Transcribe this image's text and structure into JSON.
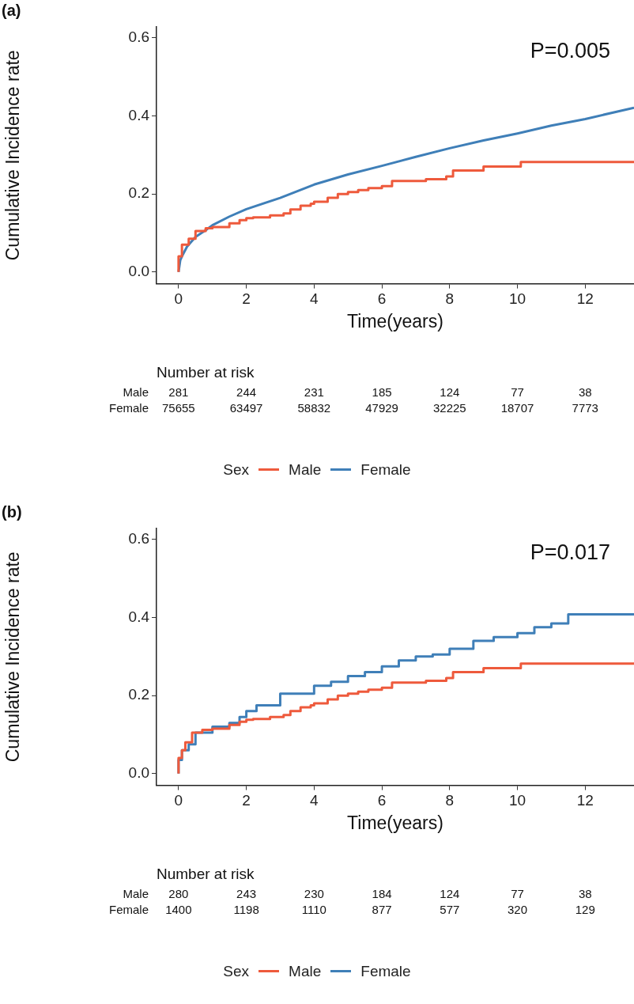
{
  "chart_data": [
    {
      "type": "step",
      "xlabel": "Time(years)",
      "ylabel": "Cumulative Incidence rate",
      "legend_title": "Sex",
      "legend": "bottom",
      "grid": false,
      "marker": "none",
      "line_style": "solid",
      "xlim": [
        -0.65,
        13.44
      ],
      "xticks": [
        0,
        2,
        4,
        6,
        8,
        10,
        12
      ],
      "ylim": [
        -0.03,
        0.628
      ],
      "yticks": [
        {
          "value": 0,
          "label": "0.0"
        },
        {
          "value": 0.2,
          "label": "0.2"
        },
        {
          "value": 0.4,
          "label": "0.4"
        },
        {
          "value": 0.6,
          "label": "0.6"
        }
      ],
      "annotations": [
        "(a)",
        "P=0.005",
        "Number at risk",
        "Male",
        "281",
        "244",
        "231",
        "185",
        "124",
        "77",
        "38",
        "Female",
        "75655",
        "63497",
        "58832",
        "47929",
        "32225",
        "18707",
        "7773"
      ],
      "series": [
        {
          "name": "Male",
          "color": "#ee5a3c",
          "type": "step",
          "x": [
            0,
            0.1,
            0.3,
            0.5,
            0.8,
            1.0,
            1.5,
            1.8,
            2.0,
            2.2,
            2.7,
            3.1,
            3.3,
            3.6,
            3.9,
            4.0,
            4.4,
            4.7,
            5.0,
            5.3,
            5.6,
            6.0,
            6.3,
            7.3,
            7.9,
            8.1,
            9.0,
            10.1,
            11.0,
            13.44
          ],
          "values": [
            0,
            0.04,
            0.07,
            0.085,
            0.105,
            0.112,
            0.115,
            0.125,
            0.133,
            0.138,
            0.14,
            0.145,
            0.15,
            0.16,
            0.17,
            0.175,
            0.18,
            0.19,
            0.2,
            0.205,
            0.21,
            0.215,
            0.22,
            0.233,
            0.238,
            0.245,
            0.26,
            0.27,
            0.282,
            0.282
          ]
        },
        {
          "name": "Female",
          "color": "#3f7fb8",
          "type": "line",
          "x": [
            0,
            0.05,
            0.1,
            0.25,
            0.5,
            0.8,
            1,
            1.5,
            2,
            3,
            4,
            5,
            6,
            7,
            8,
            9,
            10,
            11,
            12,
            13.44
          ],
          "values": [
            0,
            0.03,
            0.04,
            0.065,
            0.09,
            0.107,
            0.12,
            0.142,
            0.161,
            0.19,
            0.224,
            0.25,
            0.272,
            0.295,
            0.317,
            0.337,
            0.355,
            0.375,
            0.392,
            0.421
          ]
        }
      ]
    },
    {
      "type": "step",
      "xlabel": "Time(years)",
      "ylabel": "Cumulative Incidence rate",
      "legend_title": "Sex",
      "legend": "bottom",
      "grid": false,
      "marker": "none",
      "line_style": "solid",
      "xlim": [
        -0.65,
        13.44
      ],
      "xticks": [
        0,
        2,
        4,
        6,
        8,
        10,
        12
      ],
      "ylim": [
        -0.03,
        0.628
      ],
      "yticks": [
        {
          "value": 0,
          "label": "0.0"
        },
        {
          "value": 0.2,
          "label": "0.2"
        },
        {
          "value": 0.4,
          "label": "0.4"
        },
        {
          "value": 0.6,
          "label": "0.6"
        }
      ],
      "annotations": [
        "(b)",
        "P=0.017",
        "Number at risk",
        "Male",
        "280",
        "243",
        "230",
        "184",
        "124",
        "77",
        "38",
        "Female",
        "1400",
        "1198",
        "1110",
        "877",
        "577",
        "320",
        "129"
      ],
      "series": [
        {
          "name": "Male",
          "color": "#ee5a3c",
          "type": "step",
          "x": [
            0,
            0.1,
            0.2,
            0.4,
            0.7,
            1.0,
            1.5,
            1.8,
            2.0,
            2.2,
            2.7,
            3.1,
            3.3,
            3.6,
            3.9,
            4.0,
            4.4,
            4.7,
            5.0,
            5.3,
            5.6,
            6.0,
            6.3,
            7.3,
            7.9,
            8.1,
            9.0,
            10.1,
            11.0,
            13.44
          ],
          "values": [
            0,
            0.04,
            0.06,
            0.08,
            0.105,
            0.112,
            0.115,
            0.125,
            0.133,
            0.138,
            0.14,
            0.145,
            0.15,
            0.16,
            0.17,
            0.175,
            0.18,
            0.19,
            0.2,
            0.205,
            0.21,
            0.215,
            0.22,
            0.233,
            0.238,
            0.245,
            0.26,
            0.27,
            0.282,
            0.282
          ]
        },
        {
          "name": "Female",
          "color": "#3f7fb8",
          "type": "step",
          "x": [
            0,
            0.1,
            0.3,
            0.5,
            1.0,
            1.5,
            1.8,
            2.0,
            2.3,
            3,
            4,
            4.5,
            5,
            5.5,
            6,
            6.5,
            7,
            7.5,
            8,
            8.7,
            9.3,
            10,
            10.5,
            11,
            11.5,
            12.1,
            13.44
          ],
          "values": [
            0,
            0.035,
            0.06,
            0.075,
            0.105,
            0.12,
            0.13,
            0.145,
            0.16,
            0.175,
            0.205,
            0.225,
            0.235,
            0.25,
            0.26,
            0.275,
            0.29,
            0.3,
            0.305,
            0.32,
            0.34,
            0.35,
            0.36,
            0.375,
            0.385,
            0.408,
            0.408
          ]
        }
      ]
    }
  ]
}
